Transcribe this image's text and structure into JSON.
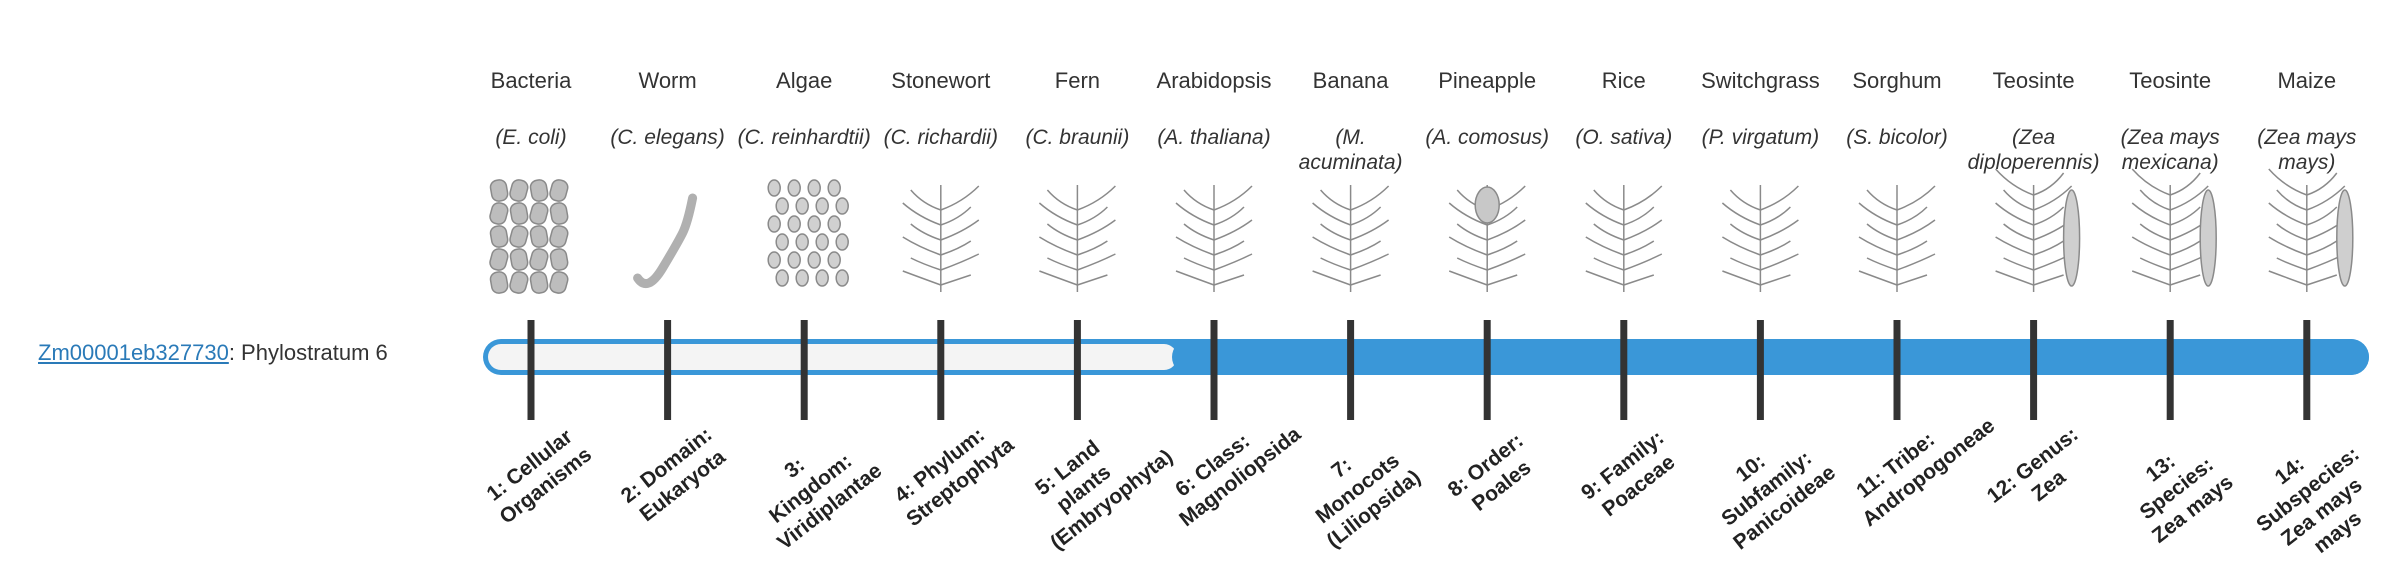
{
  "gene": "Zm00001eb327730",
  "gene_text": ": Phylostratum 6",
  "organisms": [
    {
      "name": "Bacteria",
      "species": "(E. coli)"
    },
    {
      "name": "Worm",
      "species": "(C. elegans)"
    },
    {
      "name": "Algae",
      "species": "(C. reinhardtii)"
    },
    {
      "name": "Stonewort",
      "species": "(C. richardii)"
    },
    {
      "name": "Fern",
      "species": "(C. braunii)"
    },
    {
      "name": "Arabidopsis",
      "species": "(A. thaliana)"
    },
    {
      "name": "Banana",
      "species": "(M. acuminata)"
    },
    {
      "name": "Pineapple",
      "species": "(A. comosus)"
    },
    {
      "name": "Rice",
      "species": "(O. sativa)"
    },
    {
      "name": "Switchgrass",
      "species": "(P. virgatum)"
    },
    {
      "name": "Sorghum",
      "species": "(S. bicolor)"
    },
    {
      "name": "Teosinte",
      "species": "(Zea diploperennis)"
    },
    {
      "name": "Teosinte",
      "species": "(Zea mays mexicana)"
    },
    {
      "name": "Maize",
      "species": "(Zea mays mays)"
    }
  ],
  "strata": [
    "1: Cellular Organisms",
    "2: Domain: Eukaryota",
    "3: Kingdom: Viridiplantae",
    "4: Phylum: Streptophyta",
    "5: Land plants (Embryophyta)",
    "6: Class: Magnoliopsida",
    "7: Monocots (Liliopsida)",
    "8: Order: Poales",
    "9: Family: Poaceae",
    "10: Subfamily: Panicoideae",
    "11: Tribe: Andropogoneae",
    "12: Genus: Zea",
    "13: Species: Zea mays",
    "14: Subspecies: Zea mays mays"
  ]
}
